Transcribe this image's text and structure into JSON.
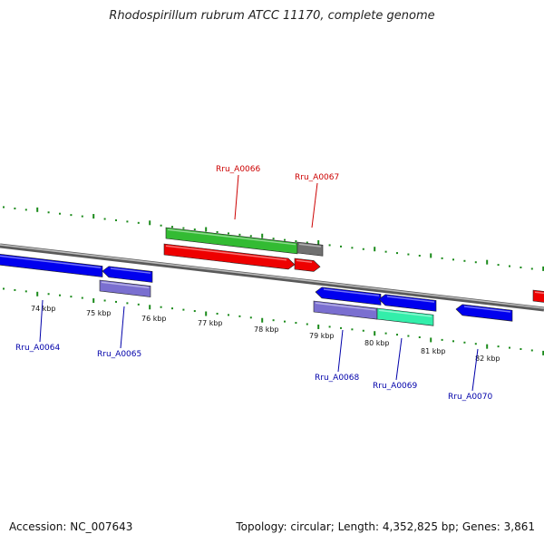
{
  "title": "Rhodospirillum rubrum ATCC 11170, complete genome",
  "accession": "Accession: NC_007643",
  "summary": "Topology: circular; Length: 4,352,825 bp; Genes: 3,861",
  "colors": {
    "backbone": "#8c8c8c",
    "tick": "#1a8a1a",
    "forward_label": "#cc0000",
    "reverse_label": "#0000aa",
    "gene_blue": "#0000ee",
    "gene_red": "#ee0000",
    "cds_green": "#33bb33",
    "cds_gray": "#707070",
    "cds_purple": "#7a6fd0",
    "cds_aqua": "#33eeaa"
  },
  "kbp_labels": [
    "74 kbp",
    "75 kbp",
    "76 kbp",
    "77 kbp",
    "78 kbp",
    "79 kbp",
    "80 kbp",
    "81 kbp",
    "82 kbp"
  ],
  "forward_genes": [
    {
      "label": "Rru_A0066"
    },
    {
      "label": "Rru_A0067"
    }
  ],
  "reverse_genes": [
    {
      "label": "Rru_A0064"
    },
    {
      "label": "Rru_A0065"
    },
    {
      "label": "Rru_A0068"
    },
    {
      "label": "Rru_A0069"
    },
    {
      "label": "Rru_A0070"
    }
  ]
}
